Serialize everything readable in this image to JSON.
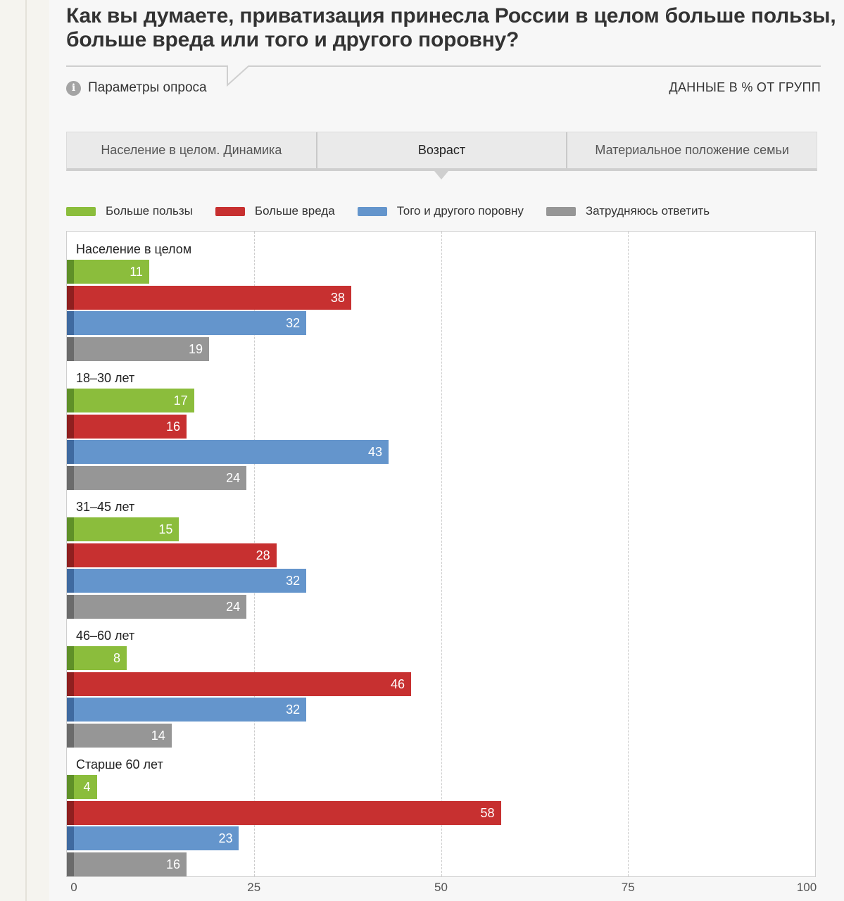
{
  "title": {
    "line1": "Как вы думаете, приватизация принесла России в целом больше пользы,",
    "line2": "больше вреда или того и другого поровну?"
  },
  "info": {
    "label": "Параметры опроса",
    "icon": "info-icon"
  },
  "units_label": "ДАННЫЕ В % ОТ ГРУПП",
  "tabs": [
    {
      "label": "Население в целом. Динамика",
      "active": false
    },
    {
      "label": "Возраст",
      "active": true
    },
    {
      "label": "Материальное положение семьи",
      "active": false
    }
  ],
  "colors": {
    "green": "#8bbd3c",
    "green_dark": "#5f9028",
    "red": "#c73030",
    "red_dark": "#8f1f1f",
    "blue": "#6495cc",
    "blue_dark": "#3f6aa0",
    "gray": "#969696",
    "gray_dark": "#6b6b6b"
  },
  "chart_data": {
    "type": "bar",
    "orientation": "horizontal",
    "categories": [
      "Население в целом",
      "18–30 лет",
      "31–45 лет",
      "46–60 лет",
      "Старше 60 лет"
    ],
    "series": [
      {
        "name": "Больше пользы",
        "color": "#8bbd3c",
        "values": [
          11,
          17,
          15,
          8,
          4
        ]
      },
      {
        "name": "Больше вреда",
        "color": "#c73030",
        "values": [
          38,
          16,
          28,
          46,
          58
        ]
      },
      {
        "name": "Того и другого поровну",
        "color": "#6495cc",
        "values": [
          32,
          43,
          32,
          32,
          23
        ]
      },
      {
        "name": "Затрудняюсь ответить",
        "color": "#969696",
        "values": [
          19,
          24,
          24,
          14,
          16
        ]
      }
    ],
    "xlim": [
      0,
      100
    ],
    "xticks": [
      0,
      25,
      50,
      75,
      100
    ],
    "grid": true,
    "legend": "top"
  }
}
